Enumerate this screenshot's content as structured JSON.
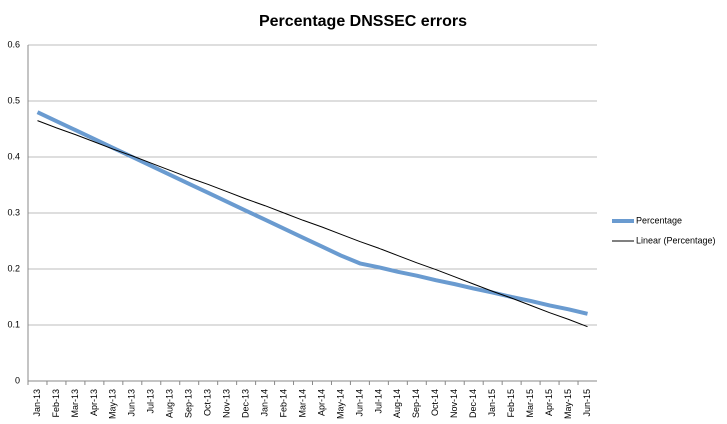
{
  "chart_data": {
    "type": "line",
    "title": "Percentage DNSSEC errors",
    "categories": [
      "Jan-13",
      "Feb-13",
      "Mar-13",
      "Apr-13",
      "May-13",
      "Jun-13",
      "Jul-13",
      "Aug-13",
      "Sep-13",
      "Oct-13",
      "Nov-13",
      "Dec-13",
      "Jan-14",
      "Feb-14",
      "Mar-14",
      "Apr-14",
      "May-14",
      "Jun-14",
      "Jul-14",
      "Aug-14",
      "Sep-14",
      "Oct-14",
      "Nov-14",
      "Dec-14",
      "Jan-15",
      "Feb-15",
      "Mar-15",
      "Apr-15",
      "May-15",
      "Jun-15"
    ],
    "series": [
      {
        "name": "Percentage",
        "color": "#6a9bd0",
        "width": 4,
        "values": [
          0.48,
          0.464,
          0.448,
          0.432,
          0.416,
          0.4,
          0.384,
          0.368,
          0.352,
          0.336,
          0.32,
          0.304,
          0.288,
          0.272,
          0.256,
          0.24,
          0.224,
          0.21,
          0.203,
          0.195,
          0.188,
          0.18,
          0.173,
          0.165,
          0.158,
          0.15,
          0.143,
          0.135,
          0.128,
          0.12
        ]
      },
      {
        "name": "Linear (Percentage)",
        "color": "#000000",
        "width": 1,
        "values": [
          0.465,
          0.452,
          0.44,
          0.427,
          0.414,
          0.402,
          0.389,
          0.376,
          0.363,
          0.351,
          0.338,
          0.325,
          0.313,
          0.3,
          0.287,
          0.275,
          0.262,
          0.249,
          0.237,
          0.224,
          0.211,
          0.199,
          0.186,
          0.173,
          0.16,
          0.148,
          0.135,
          0.122,
          0.11,
          0.097
        ]
      }
    ],
    "ylim": [
      0,
      0.6
    ],
    "yticks": [
      0,
      0.1,
      0.2,
      0.3,
      0.4,
      0.5,
      0.6
    ],
    "grid": true,
    "legend": "right"
  }
}
